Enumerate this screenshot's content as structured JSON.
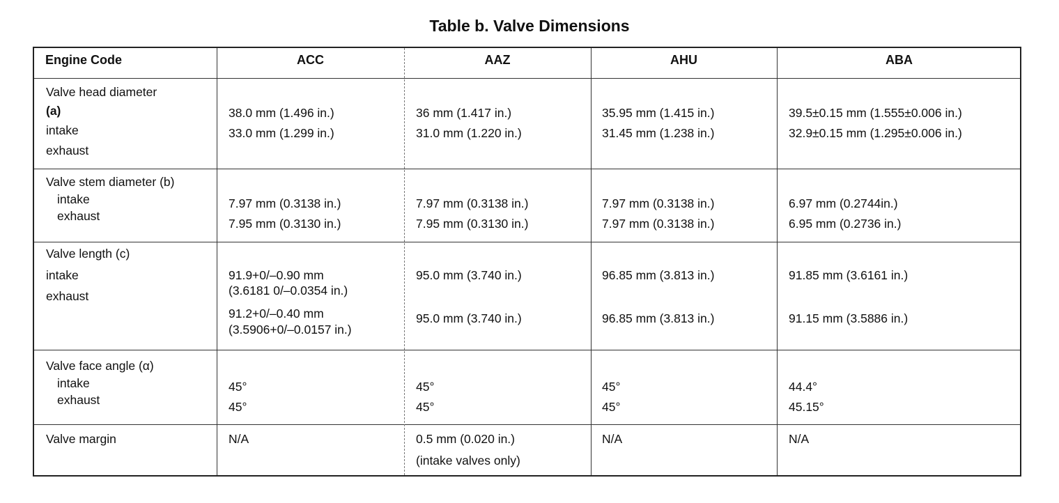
{
  "title": "Table b. Valve Dimensions",
  "header": {
    "label": "Engine Code",
    "columns": [
      "ACC",
      "AAZ",
      "AHU",
      "ABA"
    ]
  },
  "rows": [
    {
      "label": [
        "Valve head diameter",
        "(a)",
        "intake",
        "exhaust"
      ],
      "values": [
        [
          "38.0 mm (1.496 in.)",
          "33.0 mm (1.299 in.)"
        ],
        [
          "36 mm (1.417 in.)",
          "31.0 mm (1.220 in.)"
        ],
        [
          "35.95 mm (1.415 in.)",
          "31.45 mm (1.238 in.)"
        ],
        [
          "39.5±0.15 mm (1.555±0.006 in.)",
          "32.9±0.15 mm (1.295±0.006 in.)"
        ]
      ]
    },
    {
      "label": [
        "Valve stem diameter (b)",
        "intake",
        "exhaust"
      ],
      "values": [
        [
          "7.97 mm (0.3138 in.)",
          "7.95 mm (0.3130 in.)"
        ],
        [
          "7.97 mm (0.3138 in.)",
          "7.95 mm (0.3130 in.)"
        ],
        [
          "7.97 mm (0.3138 in.)",
          "7.97 mm (0.3138 in.)"
        ],
        [
          "6.97 mm (0.2744in.)",
          "6.95 mm (0.2736 in.)"
        ]
      ]
    },
    {
      "label": [
        "Valve length (c)",
        "intake",
        "exhaust"
      ],
      "values": [
        [
          "91.9+0/–0.90 mm",
          "(3.6181 0/–0.0354 in.)",
          "91.2+0/–0.40 mm",
          "(3.5906+0/–0.0157 in.)"
        ],
        [
          "95.0 mm (3.740 in.)",
          "95.0 mm (3.740 in.)"
        ],
        [
          "96.85 mm (3.813 in.)",
          "96.85 mm (3.813 in.)"
        ],
        [
          "91.85 mm (3.6161 in.)",
          "91.15 mm (3.5886 in.)"
        ]
      ]
    },
    {
      "label": [
        "Valve face angle (α)",
        "intake",
        "exhaust"
      ],
      "values": [
        [
          "45°",
          "45°"
        ],
        [
          "45°",
          "45°"
        ],
        [
          "45°",
          "45°"
        ],
        [
          "44.4°",
          "45.15°"
        ]
      ]
    },
    {
      "label": [
        "Valve margin"
      ],
      "values": [
        [
          "N/A"
        ],
        [
          "0.5 mm (0.020 in.)",
          "(intake valves only)"
        ],
        [
          "N/A"
        ],
        [
          "N/A"
        ]
      ]
    }
  ]
}
